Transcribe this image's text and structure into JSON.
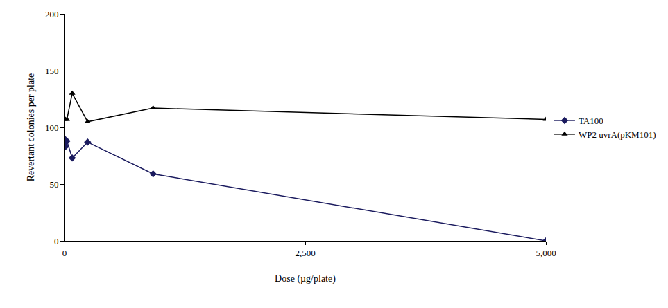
{
  "chart_data": {
    "type": "line",
    "x_label": "Dose (µg/plate)",
    "y_label": "Revertant colonies per plate",
    "x": [
      0,
      10,
      25,
      80,
      240,
      920,
      5000
    ],
    "series": [
      {
        "name": "TA100",
        "color": "#1a1a5e",
        "marker": "diamond",
        "values": [
          90,
          83,
          88,
          73,
          87,
          59,
          0
        ]
      },
      {
        "name": "WP2 uvrA(pKM101)",
        "color": "#000000",
        "marker": "triangle-up",
        "values": [
          107,
          107,
          107,
          130,
          105,
          117,
          107
        ]
      }
    ],
    "xlim": [
      0,
      5000
    ],
    "xticks": [
      0,
      {
        "value": 2500,
        "label": "2,500"
      },
      {
        "value": 5000,
        "label": "5,000"
      }
    ],
    "ylim": [
      0,
      200
    ],
    "yticks": [
      0,
      50,
      100,
      150,
      200
    ],
    "grid": false,
    "legend": "right"
  }
}
